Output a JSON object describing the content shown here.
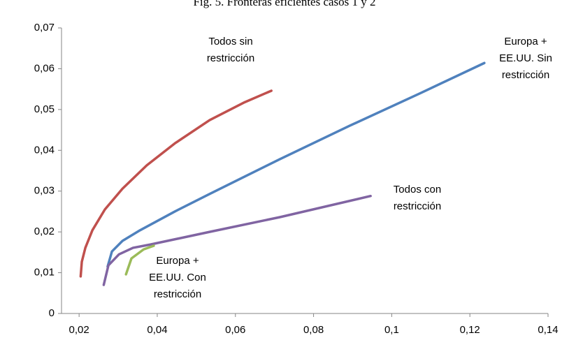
{
  "chart_data": {
    "type": "line",
    "title": "Fig. 5. Fronteras eficientes casos 1 y 2",
    "xlim": [
      0.0155,
      0.14
    ],
    "ylim": [
      0,
      0.07
    ],
    "xticks": [
      {
        "value": 0.02,
        "label": "0,02"
      },
      {
        "value": 0.04,
        "label": "0,04"
      },
      {
        "value": 0.06,
        "label": "0,06"
      },
      {
        "value": 0.08,
        "label": "0,08"
      },
      {
        "value": 0.1,
        "label": "0,1"
      },
      {
        "value": 0.12,
        "label": "0,12"
      },
      {
        "value": 0.14,
        "label": "0,14"
      }
    ],
    "yticks": [
      0,
      {
        "value": 0.01,
        "label": "0,01"
      },
      {
        "value": 0.02,
        "label": "0,02"
      },
      {
        "value": 0.03,
        "label": "0,03"
      },
      {
        "value": 0.04,
        "label": "0,04"
      },
      {
        "value": 0.05,
        "label": "0,05"
      },
      {
        "value": 0.06,
        "label": "0,06"
      },
      {
        "value": 0.07,
        "label": "0,07"
      }
    ],
    "grid": false,
    "series": [
      {
        "name": "Todos sin restricción",
        "color": "#c0504d",
        "x": [
          0.0204,
          0.0207,
          0.0216,
          0.0234,
          0.0266,
          0.0311,
          0.0373,
          0.0445,
          0.0534,
          0.0624,
          0.0692
        ],
        "values": [
          0.0091,
          0.0127,
          0.0161,
          0.0204,
          0.0255,
          0.0306,
          0.0363,
          0.0417,
          0.0474,
          0.0518,
          0.0546
        ]
      },
      {
        "name": "Europa + EE.UU. Sin restricción",
        "color": "#4f81bd",
        "x": [
          0.0273,
          0.0284,
          0.0311,
          0.0356,
          0.0445,
          0.0534,
          0.0713,
          0.0892,
          0.1071,
          0.1237
        ],
        "values": [
          0.0115,
          0.0152,
          0.0178,
          0.0204,
          0.025,
          0.0293,
          0.0378,
          0.046,
          0.0539,
          0.0614
        ]
      },
      {
        "name": "Todos con restricción",
        "color": "#8064a2",
        "x": [
          0.0263,
          0.0275,
          0.0302,
          0.0338,
          0.0382,
          0.0534,
          0.0713,
          0.0946
        ],
        "values": [
          0.007,
          0.0118,
          0.0145,
          0.0161,
          0.0169,
          0.02,
          0.0236,
          0.0288
        ]
      },
      {
        "name": "Europa + EE.UU. Con restricción",
        "color": "#9bbb59",
        "x": [
          0.032,
          0.0334,
          0.0365,
          0.0391
        ],
        "values": [
          0.0096,
          0.0135,
          0.0157,
          0.0166
        ]
      }
    ]
  }
}
